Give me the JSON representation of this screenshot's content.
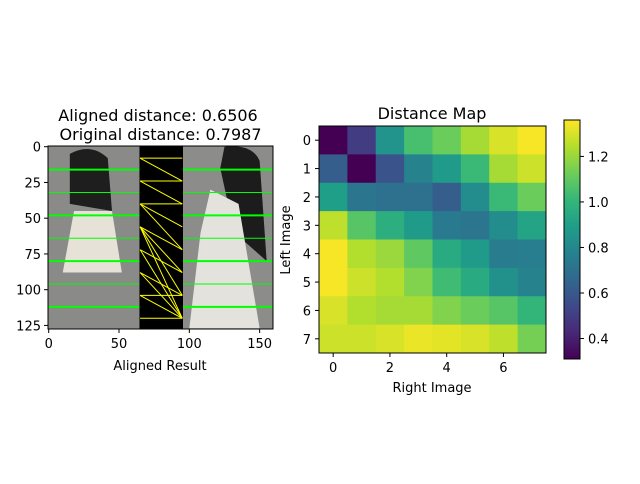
{
  "chart_data": [
    {
      "type": "image",
      "title_line1": "Aligned distance: 0.6506",
      "title_line2": " Original distance: 0.7987",
      "xlabel": "Aligned Result",
      "ylabel": "",
      "xlim": [
        -0.5,
        159.5
      ],
      "ylim": [
        127.5,
        -0.5
      ],
      "xticks": [
        0,
        50,
        100,
        150
      ],
      "yticks": [
        0,
        25,
        50,
        75,
        100,
        125
      ],
      "panels": [
        "left image",
        "alignment",
        "right image"
      ],
      "alignment_band_x": [
        65,
        95
      ],
      "green_lines_y": [
        16,
        32,
        48,
        64,
        80,
        96,
        112
      ],
      "green_color": "#00ff00",
      "yellow_color": "#ffff00",
      "yellow_links": [
        [
          8,
          8
        ],
        [
          8,
          24
        ],
        [
          24,
          24
        ],
        [
          24,
          40
        ],
        [
          40,
          40
        ],
        [
          40,
          56
        ],
        [
          40,
          72
        ],
        [
          56,
          72
        ],
        [
          56,
          88
        ],
        [
          56,
          104
        ],
        [
          56,
          120
        ],
        [
          72,
          88
        ],
        [
          72,
          120
        ],
        [
          88,
          104
        ],
        [
          88,
          120
        ],
        [
          104,
          120
        ],
        [
          120,
          120
        ],
        [
          104,
          104
        ]
      ]
    },
    {
      "type": "heatmap",
      "title": "Distance Map",
      "xlabel": "Right Image",
      "ylabel": "Left Image",
      "xticks": [
        0,
        2,
        4,
        6
      ],
      "yticks": [
        0,
        1,
        2,
        3,
        4,
        5,
        6,
        7
      ],
      "colormap": "viridis",
      "colorbar_range": [
        0.31,
        1.36
      ],
      "colorbar_ticks": [
        "0.4",
        "0.6",
        "0.8",
        "1.0",
        "1.2"
      ],
      "values": [
        [
          0.31,
          0.5,
          0.85,
          1.05,
          1.12,
          1.22,
          1.3,
          1.35
        ],
        [
          0.62,
          0.31,
          0.58,
          0.78,
          0.88,
          1.02,
          1.22,
          1.28
        ],
        [
          0.9,
          0.72,
          0.7,
          0.7,
          0.62,
          0.82,
          1.02,
          1.12
        ],
        [
          1.26,
          1.08,
          0.97,
          0.88,
          0.74,
          0.72,
          0.82,
          0.92
        ],
        [
          1.35,
          1.24,
          1.2,
          1.1,
          0.95,
          0.88,
          0.75,
          0.76
        ],
        [
          1.35,
          1.28,
          1.24,
          1.16,
          1.03,
          0.95,
          0.84,
          0.78
        ],
        [
          1.3,
          1.24,
          1.22,
          1.22,
          1.16,
          1.12,
          1.08,
          1.0
        ],
        [
          1.28,
          1.28,
          1.3,
          1.33,
          1.32,
          1.3,
          1.26,
          1.14
        ]
      ]
    }
  ]
}
